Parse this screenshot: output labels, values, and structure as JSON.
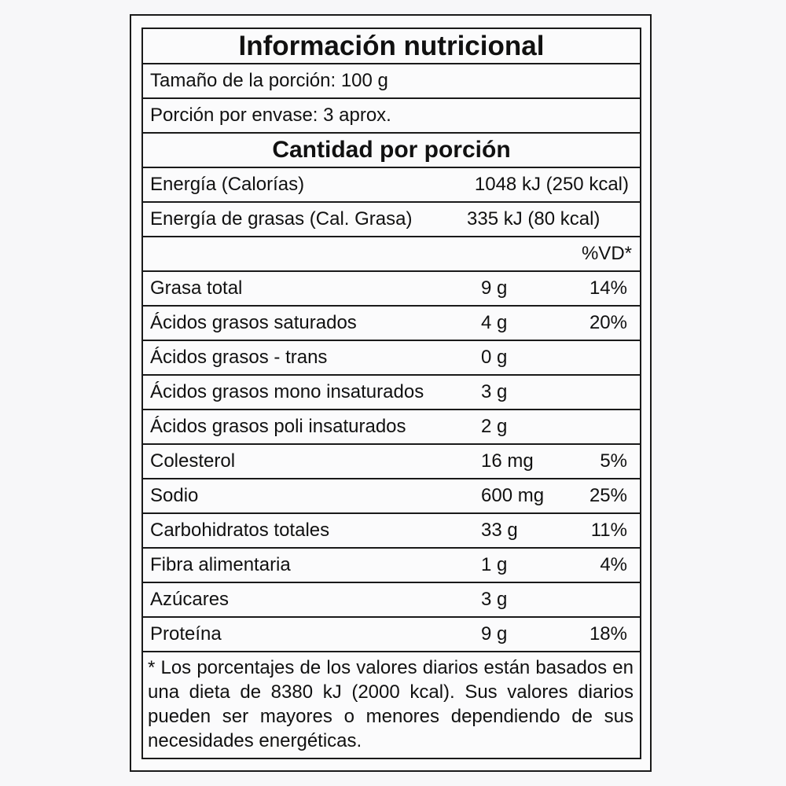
{
  "title": "Información nutricional",
  "serving_size": "Tamaño de la porción: 100 g",
  "servings_per_container": "Porción por envase: 3 aprox.",
  "amount_header": "Cantidad por porción",
  "energy": {
    "label": "Energía (Calorías)",
    "value": "1048 kJ (250 kcal)"
  },
  "fat_energy": {
    "label": "Energía de grasas (Cal. Grasa)",
    "value": "335 kJ (80 kcal)"
  },
  "dv_header": "%VD*",
  "nutrients": [
    {
      "name": "Grasa total",
      "amount": "9 g",
      "dv": "14%"
    },
    {
      "name": "Ácidos grasos saturados",
      "amount": "4 g",
      "dv": "20%"
    },
    {
      "name": "Ácidos grasos - trans",
      "amount": "0 g",
      "dv": ""
    },
    {
      "name": "Ácidos grasos mono insaturados",
      "amount": "3 g",
      "dv": ""
    },
    {
      "name": "Ácidos grasos poli insaturados",
      "amount": "2 g",
      "dv": ""
    },
    {
      "name": "Colesterol",
      "amount": "16 mg",
      "dv": "5%"
    },
    {
      "name": "Sodio",
      "amount": "600 mg",
      "dv": "25%"
    },
    {
      "name": "Carbohidratos totales",
      "amount": "33 g",
      "dv": "11%"
    },
    {
      "name": "Fibra alimentaria",
      "amount": "1 g",
      "dv": "4%"
    },
    {
      "name": "Azúcares",
      "amount": "3 g",
      "dv": ""
    },
    {
      "name": "Proteína",
      "amount": "9 g",
      "dv": "18%"
    }
  ],
  "footnote": "* Los porcentajes de los valores diarios están basados en una dieta de 8380 kJ (2000 kcal). Sus valores diarios pueden ser mayores o menores dependiendo de sus necesidades energéticas."
}
